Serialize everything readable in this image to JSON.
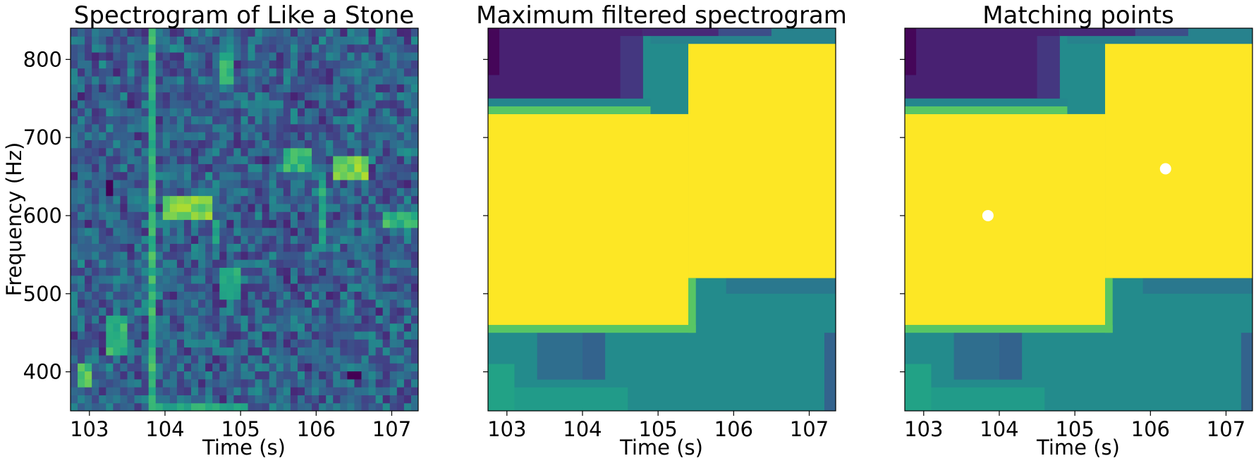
{
  "chart_data": [
    {
      "type": "heatmap",
      "title": "Spectrogram of Like a Stone",
      "xlabel": "Time (s)",
      "ylabel": "Frequency (Hz)",
      "xlim": [
        102.75,
        107.35
      ],
      "ylim": [
        350,
        840
      ],
      "xticks": [
        103,
        104,
        105,
        106,
        107
      ],
      "xtick_labels": [
        "103",
        "104",
        "105",
        "106",
        "107"
      ],
      "yticks": [
        400,
        500,
        600,
        700,
        800
      ],
      "ytick_labels": [
        "400",
        "500",
        "600",
        "700",
        "800"
      ],
      "colormap": "viridis",
      "grid": false,
      "features": [
        {
          "t0": 103.8,
          "t1": 103.9,
          "f0": 350,
          "f1": 840,
          "v": 0.85
        },
        {
          "t0": 104.0,
          "t1": 104.6,
          "f0": 595,
          "f1": 625,
          "v": 0.95
        },
        {
          "t0": 104.6,
          "t1": 104.7,
          "f0": 560,
          "f1": 600,
          "v": 0.8
        },
        {
          "t0": 104.7,
          "t1": 105.0,
          "f0": 495,
          "f1": 535,
          "v": 0.8
        },
        {
          "t0": 104.7,
          "t1": 104.9,
          "f0": 765,
          "f1": 810,
          "v": 0.85
        },
        {
          "t0": 105.6,
          "t1": 105.9,
          "f0": 655,
          "f1": 690,
          "v": 0.85
        },
        {
          "t0": 106.2,
          "t1": 106.7,
          "f0": 650,
          "f1": 680,
          "v": 0.95
        },
        {
          "t0": 106.0,
          "t1": 106.1,
          "f0": 560,
          "f1": 650,
          "v": 0.8
        },
        {
          "t0": 103.2,
          "t1": 103.5,
          "f0": 420,
          "f1": 470,
          "v": 0.85
        },
        {
          "t0": 102.8,
          "t1": 103.0,
          "f0": 380,
          "f1": 410,
          "v": 0.9
        },
        {
          "t0": 106.9,
          "t1": 107.35,
          "f0": 580,
          "f1": 610,
          "v": 0.85
        },
        {
          "t0": 103.8,
          "t1": 105.1,
          "f0": 350,
          "f1": 362,
          "v": 0.8
        }
      ],
      "low_points": [
        {
          "t": 106.5,
          "f": 395
        },
        {
          "t": 103.3,
          "f": 635
        }
      ]
    },
    {
      "type": "heatmap",
      "title": "Maximum filtered spectrogram",
      "xlabel": "Time (s)",
      "ylabel": "",
      "xlim": [
        102.75,
        107.35
      ],
      "ylim": [
        350,
        840
      ],
      "xticks": [
        103,
        104,
        105,
        106,
        107
      ],
      "xtick_labels": [
        "103",
        "104",
        "105",
        "106",
        "107"
      ],
      "yticks": [
        400,
        500,
        600,
        700,
        800
      ],
      "ytick_labels": [],
      "colormap": "viridis",
      "grid": false,
      "regions": [
        {
          "t0": 102.75,
          "t1": 107.35,
          "f0": 350,
          "f1": 840,
          "v": 0.6
        },
        {
          "t0": 102.75,
          "t1": 103.1,
          "f0": 350,
          "f1": 410,
          "v": 0.72
        },
        {
          "t0": 103.1,
          "t1": 104.6,
          "f0": 350,
          "f1": 380,
          "v": 0.68
        },
        {
          "t0": 103.4,
          "t1": 104.0,
          "f0": 390,
          "f1": 450,
          "v": 0.45
        },
        {
          "t0": 104.0,
          "t1": 104.3,
          "f0": 390,
          "f1": 450,
          "v": 0.4
        },
        {
          "t0": 105.9,
          "t1": 107.35,
          "f0": 500,
          "f1": 520,
          "v": 0.5
        },
        {
          "t0": 107.2,
          "t1": 107.35,
          "f0": 350,
          "f1": 450,
          "v": 0.4
        },
        {
          "t0": 102.75,
          "t1": 105.5,
          "f0": 450,
          "f1": 460,
          "v": 0.85
        },
        {
          "t0": 102.75,
          "t1": 105.4,
          "f0": 460,
          "f1": 730,
          "v": 1.0
        },
        {
          "t0": 105.4,
          "t1": 107.35,
          "f0": 520,
          "f1": 820,
          "v": 1.0
        },
        {
          "t0": 105.4,
          "t1": 105.5,
          "f0": 450,
          "f1": 520,
          "v": 0.85
        },
        {
          "t0": 102.75,
          "t1": 104.9,
          "f0": 730,
          "f1": 740,
          "v": 0.85
        },
        {
          "t0": 104.9,
          "t1": 107.35,
          "f0": 820,
          "f1": 840,
          "v": 0.55
        },
        {
          "t0": 102.75,
          "t1": 104.9,
          "f0": 740,
          "f1": 750,
          "v": 0.58
        },
        {
          "t0": 102.75,
          "t1": 104.8,
          "f0": 750,
          "f1": 840,
          "v": 0.12
        },
        {
          "t0": 104.5,
          "t1": 104.8,
          "f0": 750,
          "f1": 830,
          "v": 0.2
        },
        {
          "t0": 102.75,
          "t1": 102.9,
          "f0": 780,
          "f1": 840,
          "v": 0.02
        },
        {
          "t0": 104.8,
          "t1": 105.8,
          "f0": 830,
          "f1": 840,
          "v": 0.15
        },
        {
          "t0": 105.8,
          "t1": 106.5,
          "f0": 830,
          "f1": 840,
          "v": 0.3
        }
      ]
    },
    {
      "type": "heatmap",
      "title": "Matching points",
      "xlabel": "Time (s)",
      "ylabel": "",
      "xlim": [
        102.75,
        107.35
      ],
      "ylim": [
        350,
        840
      ],
      "xticks": [
        103,
        104,
        105,
        106,
        107
      ],
      "xtick_labels": [
        "103",
        "104",
        "105",
        "106",
        "107"
      ],
      "yticks": [
        400,
        500,
        600,
        700,
        800
      ],
      "ytick_labels": [],
      "colormap": "viridis",
      "grid": false,
      "same_regions_as": 1,
      "points": [
        {
          "t": 103.85,
          "f": 600
        },
        {
          "t": 106.2,
          "f": 660
        }
      ],
      "point_color": "#ffffff"
    }
  ]
}
